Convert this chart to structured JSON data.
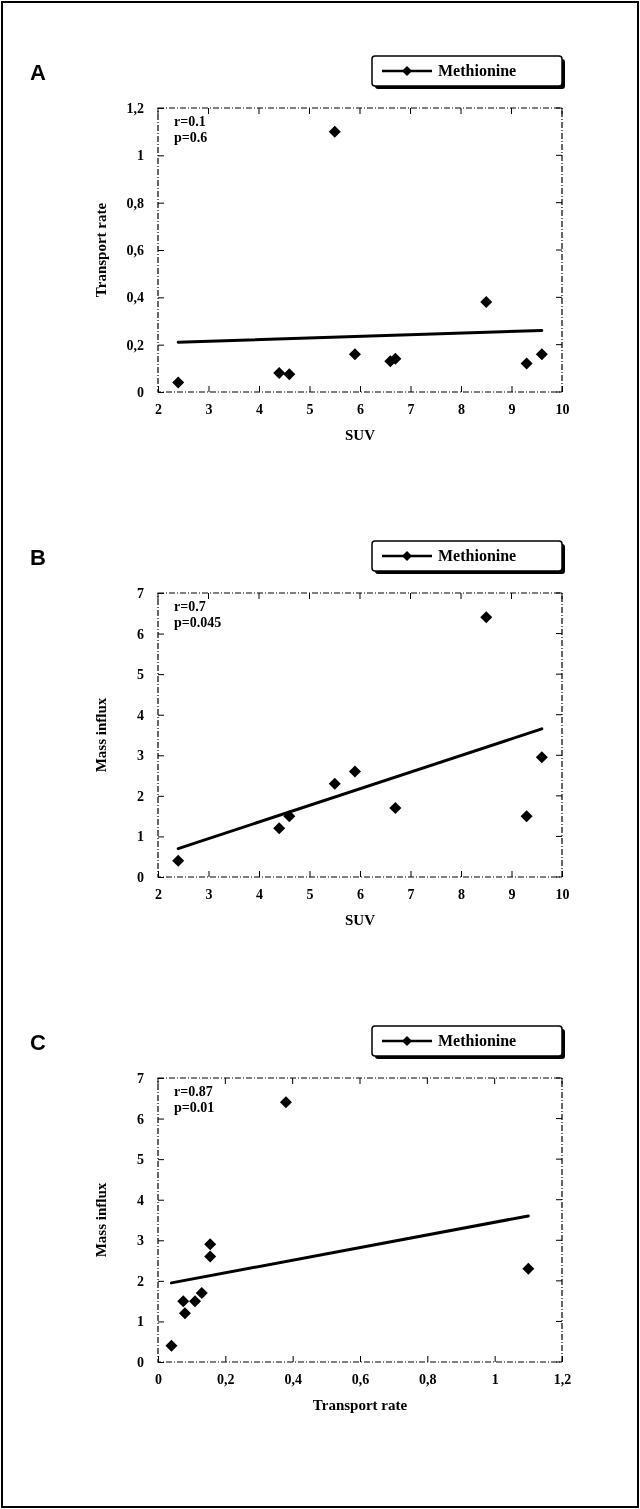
{
  "chart_data": [
    {
      "type": "scatter",
      "title": "A",
      "xlabel": "SUV",
      "ylabel": "Transport rate",
      "xlim": [
        2,
        10
      ],
      "xticks": [
        2,
        3,
        4,
        5,
        6,
        7,
        8,
        9,
        10
      ],
      "ylim": [
        0,
        1.2
      ],
      "yticks": [
        0,
        {
          "value": 0.2,
          "label": "0,2"
        },
        {
          "value": 0.4,
          "label": "0,4"
        },
        {
          "value": 0.6,
          "label": "0,6"
        },
        {
          "value": 0.8,
          "label": "0,8"
        },
        1,
        {
          "value": 1.2,
          "label": "1,2"
        }
      ],
      "legend": "top right",
      "grid": false,
      "annotations": [
        "r=0.1",
        "p=0.6"
      ],
      "series": [
        {
          "name": "Methionine",
          "marker": "diamond",
          "color": "#000000",
          "x": [
            2.4,
            4.4,
            4.6,
            5.5,
            5.9,
            6.6,
            6.7,
            8.5,
            9.3,
            9.6
          ],
          "values": [
            0.04,
            0.08,
            0.075,
            1.1,
            0.16,
            0.13,
            0.14,
            0.38,
            0.12,
            0.16
          ]
        },
        {
          "type": "line",
          "color": "#000000",
          "x": [
            2.4,
            9.6
          ],
          "values": [
            0.21,
            0.26
          ]
        }
      ]
    },
    {
      "type": "scatter",
      "title": "B",
      "xlabel": "SUV",
      "ylabel": "Mass influx",
      "xlim": [
        2,
        10
      ],
      "xticks": [
        2,
        3,
        4,
        5,
        6,
        7,
        8,
        9,
        10
      ],
      "ylim": [
        0,
        7
      ],
      "yticks": [
        0,
        1,
        2,
        3,
        4,
        5,
        6,
        7
      ],
      "legend": "top right",
      "grid": false,
      "annotations": [
        "r=0.7",
        "p=0.045"
      ],
      "series": [
        {
          "name": "Methionine",
          "marker": "diamond",
          "color": "#000000",
          "x": [
            2.4,
            4.4,
            4.6,
            5.5,
            5.9,
            6.7,
            8.5,
            9.3,
            9.6
          ],
          "values": [
            0.4,
            1.2,
            1.5,
            2.3,
            2.6,
            1.7,
            6.4,
            1.5,
            2.95
          ]
        },
        {
          "type": "line",
          "color": "#000000",
          "x": [
            2.4,
            9.6
          ],
          "values": [
            0.7,
            3.65
          ]
        }
      ]
    },
    {
      "type": "scatter",
      "title": "C",
      "xlabel": "Transport rate",
      "ylabel": "Mass influx",
      "xlim": [
        0,
        1.2
      ],
      "xticks": [
        0,
        {
          "value": 0.2,
          "label": "0,2"
        },
        {
          "value": 0.4,
          "label": "0,4"
        },
        {
          "value": 0.6,
          "label": "0,6"
        },
        {
          "value": 0.8,
          "label": "0,8"
        },
        1,
        {
          "value": 1.2,
          "label": "1,2"
        }
      ],
      "ylim": [
        0,
        7
      ],
      "yticks": [
        0,
        1,
        2,
        3,
        4,
        5,
        6,
        7
      ],
      "legend": "top right",
      "grid": false,
      "annotations": [
        "r=0.87",
        "p=0.01"
      ],
      "series": [
        {
          "name": "Methionine",
          "marker": "diamond",
          "color": "#000000",
          "x": [
            0.04,
            0.08,
            0.075,
            0.11,
            0.13,
            0.155,
            0.155,
            0.38,
            1.1
          ],
          "values": [
            0.4,
            1.2,
            1.5,
            1.5,
            1.7,
            2.6,
            2.9,
            6.4,
            2.3
          ]
        },
        {
          "type": "line",
          "color": "#000000",
          "x": [
            0.04,
            1.1
          ],
          "values": [
            1.95,
            3.6
          ]
        }
      ]
    }
  ]
}
